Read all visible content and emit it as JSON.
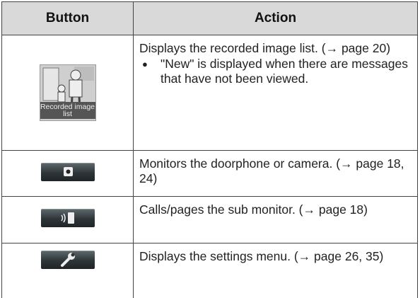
{
  "table": {
    "header": [
      "Button",
      "Action"
    ],
    "rows": [
      {
        "button_label": "Recorded image list",
        "action": "Displays the recorded image list. (→ page 20)",
        "note": "\"New\" is displayed when there are messages that have not been viewed."
      },
      {
        "action": "Monitors the doorphone or camera. (→ page 18, 24)"
      },
      {
        "action": "Calls/pages the sub monitor. (→ page 18)"
      },
      {
        "action": "Displays the settings menu. (→ page 26, 35)"
      }
    ]
  }
}
